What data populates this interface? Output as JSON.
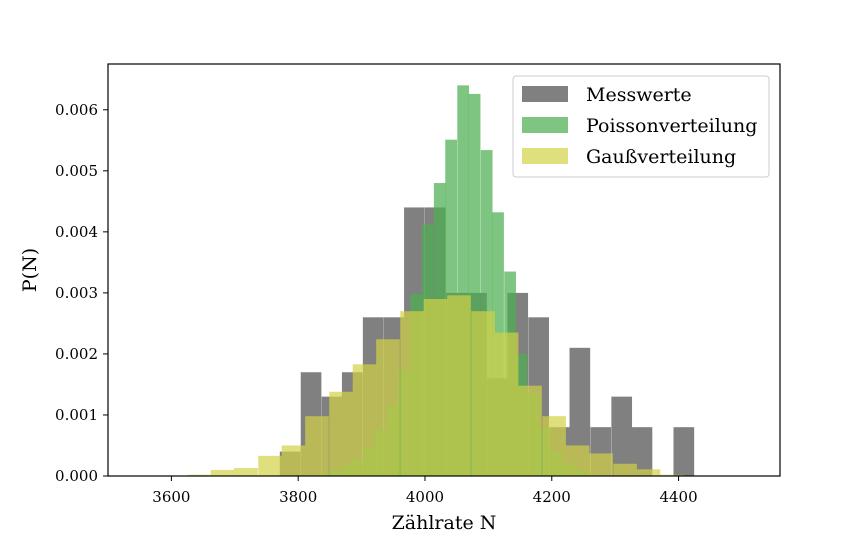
{
  "chart_data": {
    "type": "bar",
    "xlabel": "Zählrate N",
    "ylabel": "P(N)",
    "xlim": [
      3500,
      4560
    ],
    "ylim": [
      0,
      0.00675
    ],
    "xticks": [
      3600,
      3800,
      4000,
      4200,
      4400
    ],
    "xtick_labels": [
      "3600",
      "3800",
      "4000",
      "4200",
      "4400"
    ],
    "yticks": [
      0,
      0.001,
      0.002,
      0.003,
      0.004,
      0.005,
      0.006
    ],
    "ytick_labels": [
      "0.000",
      "0.001",
      "0.002",
      "0.003",
      "0.004",
      "0.005",
      "0.006"
    ],
    "grid": false,
    "legend_position": "top-right",
    "series": [
      {
        "name": "Messwerte",
        "color": "#808080",
        "alpha": 1.0,
        "bin_width": 32.6,
        "bins": [
          [
            3771,
            0.0004
          ],
          [
            3804,
            0.0017
          ],
          [
            3837,
            0.0013
          ],
          [
            3869,
            0.0017
          ],
          [
            3902,
            0.0026
          ],
          [
            3935,
            0.0026
          ],
          [
            3967,
            0.0044
          ],
          [
            4000,
            0.0044
          ],
          [
            4033,
            0.003
          ],
          [
            4065,
            0.003
          ],
          [
            4098,
            0.0016
          ],
          [
            4130,
            0.003
          ],
          [
            4163,
            0.0026
          ],
          [
            4196,
            0.0008
          ],
          [
            4228,
            0.0021
          ],
          [
            4261,
            0.0008
          ],
          [
            4294,
            0.0013
          ],
          [
            4326,
            0.0008
          ],
          [
            4359,
            0.0
          ],
          [
            4392,
            0.0008
          ]
        ]
      },
      {
        "name": "Poissonverteilung",
        "color": "#4caf50",
        "alpha": 0.72,
        "bin_width": 18.5,
        "bins": [
          [
            3810,
            2e-05
          ],
          [
            3829,
            4e-05
          ],
          [
            3847,
            8e-05
          ],
          [
            3866,
            0.00017
          ],
          [
            3884,
            0.00027
          ],
          [
            3903,
            0.00048
          ],
          [
            3921,
            0.00076
          ],
          [
            3940,
            0.00116
          ],
          [
            3958,
            0.00174
          ],
          [
            3977,
            0.00298
          ],
          [
            3995,
            0.00412
          ],
          [
            4014,
            0.0048
          ],
          [
            4032,
            0.00551
          ],
          [
            4051,
            0.0064
          ],
          [
            4069,
            0.00626
          ],
          [
            4088,
            0.00534
          ],
          [
            4106,
            0.00432
          ],
          [
            4125,
            0.00335
          ],
          [
            4143,
            0.002
          ],
          [
            4162,
            0.00135
          ],
          [
            4180,
            0.00078
          ],
          [
            4199,
            0.0004
          ],
          [
            4217,
            0.0002
          ],
          [
            4236,
            0.0001
          ],
          [
            4254,
            4e-05
          ],
          [
            4273,
            2e-05
          ]
        ]
      },
      {
        "name": "Gaußverteilung",
        "color": "#d2d246",
        "alpha": 0.7,
        "bin_width": 37.3,
        "bins": [
          [
            3625,
            2e-05
          ],
          [
            3662,
            0.0001
          ],
          [
            3699,
            0.00013
          ],
          [
            3737,
            0.00033
          ],
          [
            3774,
            0.0005
          ],
          [
            3811,
            0.00098
          ],
          [
            3849,
            0.00138
          ],
          [
            3886,
            0.00183
          ],
          [
            3923,
            0.00224
          ],
          [
            3961,
            0.0027
          ],
          [
            3998,
            0.0029
          ],
          [
            4035,
            0.00296
          ],
          [
            4073,
            0.0027
          ],
          [
            4110,
            0.00235
          ],
          [
            4147,
            0.00148
          ],
          [
            4185,
            0.00098
          ],
          [
            4222,
            0.0005
          ],
          [
            4259,
            0.00037
          ],
          [
            4297,
            0.0002
          ],
          [
            4334,
            0.00011
          ],
          [
            4371,
            2e-05
          ]
        ]
      }
    ]
  }
}
